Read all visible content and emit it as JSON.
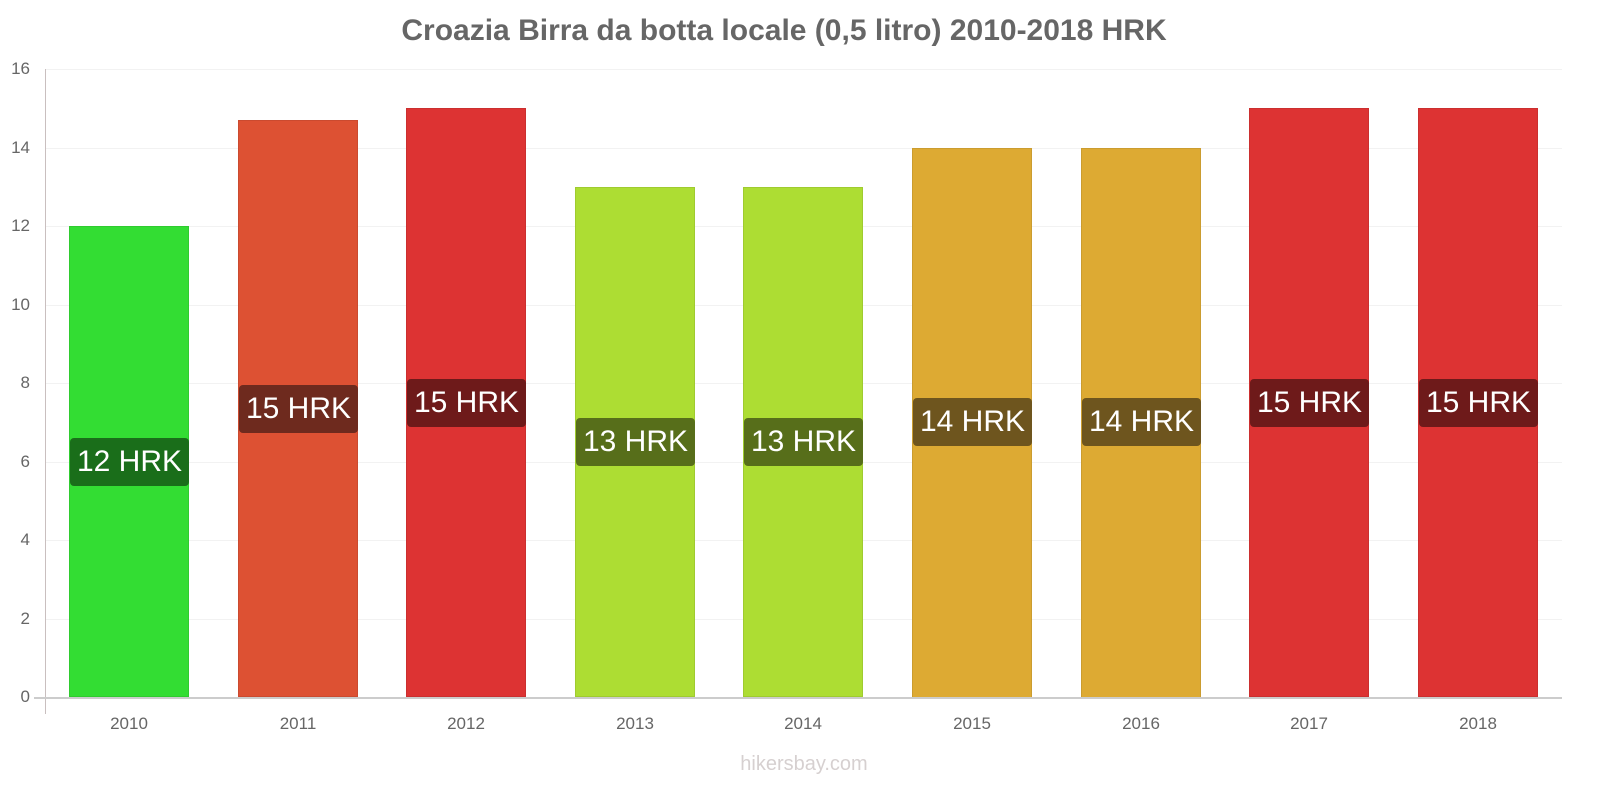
{
  "chart_data": {
    "type": "bar",
    "title": "Croazia Birra da botta locale (0,5 litro) 2010-2018 HRK",
    "xlabel": "",
    "ylabel": "",
    "ylim": [
      0,
      16
    ],
    "yticks": [
      "0",
      "2",
      "4",
      "6",
      "8",
      "10",
      "12",
      "14",
      "16"
    ],
    "grid": true,
    "legend": null,
    "categories": [
      "2010",
      "2011",
      "2012",
      "2013",
      "2014",
      "2015",
      "2016",
      "2017",
      "2018"
    ],
    "values": [
      12,
      14.7,
      15,
      13,
      13,
      14,
      14,
      15,
      15
    ],
    "data_labels": [
      "12 HRK",
      "15 HRK",
      "15 HRK",
      "13 HRK",
      "13 HRK",
      "14 HRK",
      "14 HRK",
      "15 HRK",
      "15 HRK"
    ],
    "bar_colors": [
      "#33dd33",
      "#dd5133",
      "#dd3333",
      "#addd33",
      "#addd33",
      "#ddaa33",
      "#ddaa33",
      "#dd3333",
      "#dd3333"
    ],
    "label_colors": [
      "#1a6e1a",
      "#6e2a1e",
      "#6e1a1a",
      "#576e1a",
      "#576e1a",
      "#6e551e",
      "#6e551e",
      "#6e1a1a",
      "#6e1a1a"
    ],
    "annotations": [
      "hikersbay.com"
    ]
  },
  "watermark": "hikersbay.com"
}
